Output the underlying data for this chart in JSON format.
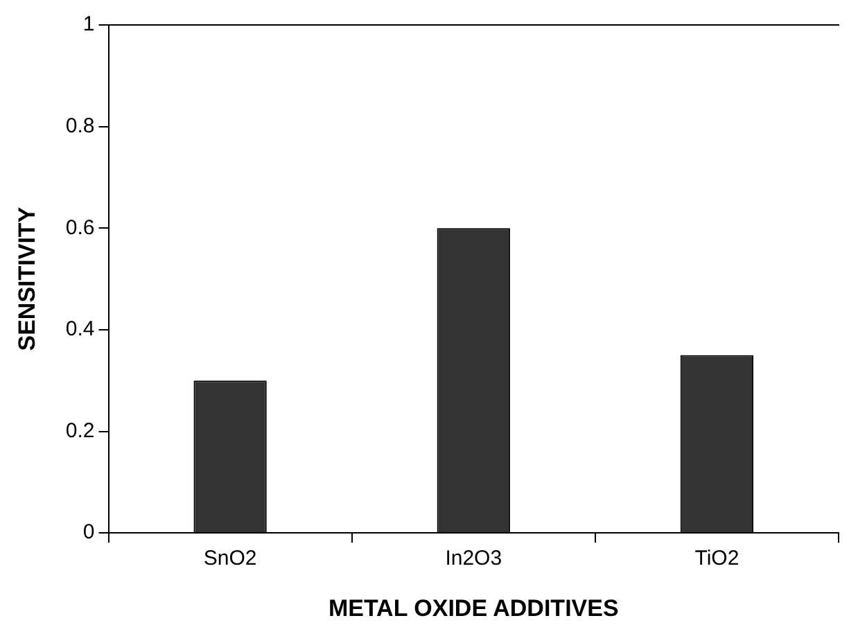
{
  "chart_data": {
    "type": "bar",
    "xlabel": "METAL OXIDE ADDITIVES",
    "ylabel": "SENSITIVITY",
    "categories": [
      "SnO2",
      "In2O3",
      "TiO2"
    ],
    "values": [
      0.3,
      0.6,
      0.35
    ],
    "color": "#333333",
    "ylim": [
      0,
      1
    ],
    "yticks": [
      0,
      0.2,
      0.4,
      0.6,
      0.8,
      1
    ],
    "grid": false,
    "legend": false
  }
}
